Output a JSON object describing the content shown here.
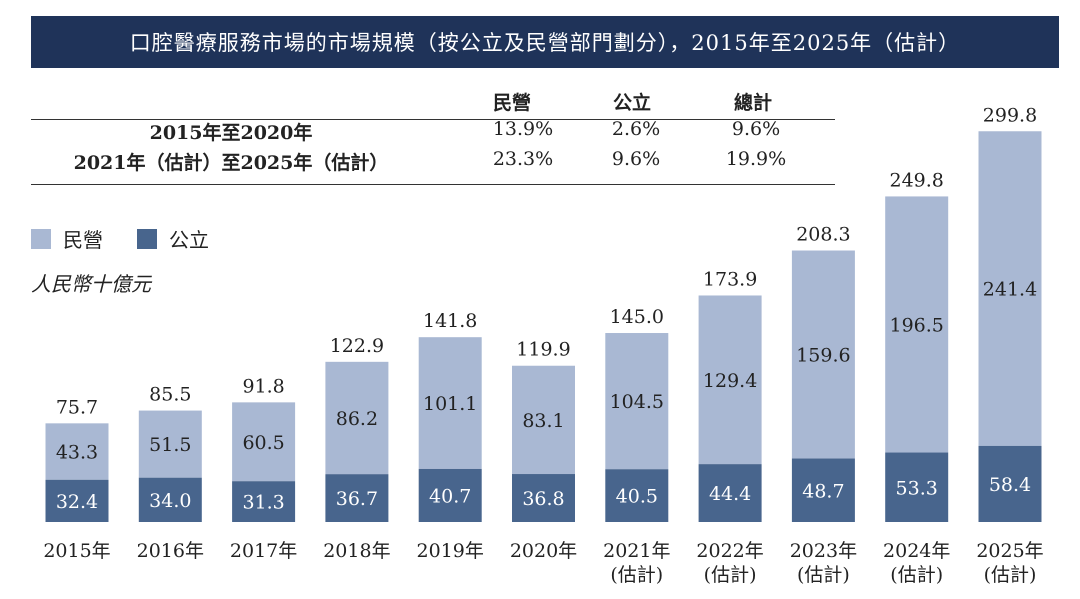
{
  "title": "口腔醫療服務市場的市場規模（按公立及民營部門劃分），2015年至2025年（估計）",
  "cagr_table": {
    "headers": [
      "民營",
      "公立",
      "總計"
    ],
    "rows": [
      {
        "label": "2015年至2020年",
        "values": [
          "13.9%",
          "2.6%",
          "9.6%"
        ]
      },
      {
        "label": "2021年（估計）至2025年（估計）",
        "values": [
          "23.3%",
          "9.6%",
          "19.9%"
        ]
      }
    ]
  },
  "legend": [
    {
      "label": "民營",
      "color": "#a9b8d3"
    },
    {
      "label": "公立",
      "color": "#48658d"
    }
  ],
  "unit_label": "人民幣十億元",
  "chart_data": {
    "type": "bar",
    "stacked": true,
    "categories": [
      "2015年",
      "2016年",
      "2017年",
      "2018年",
      "2019年",
      "2020年",
      "2021年\n(估計)",
      "2022年\n(估計)",
      "2023年\n(估計)",
      "2024年\n(估計)",
      "2025年\n(估計)"
    ],
    "series": [
      {
        "name": "公立",
        "color": "#48658d",
        "values": [
          32.4,
          34.0,
          31.3,
          36.7,
          40.7,
          36.8,
          40.5,
          44.4,
          48.7,
          53.3,
          58.4
        ]
      },
      {
        "name": "民營",
        "color": "#a9b8d3",
        "values": [
          43.3,
          51.5,
          60.5,
          86.2,
          101.1,
          83.1,
          104.5,
          129.4,
          159.6,
          196.5,
          241.4
        ]
      }
    ],
    "totals": [
      75.7,
      85.5,
      91.8,
      122.9,
      141.8,
      119.9,
      145.0,
      173.9,
      208.3,
      249.8,
      299.8
    ],
    "ylim": [
      0,
      300
    ]
  }
}
